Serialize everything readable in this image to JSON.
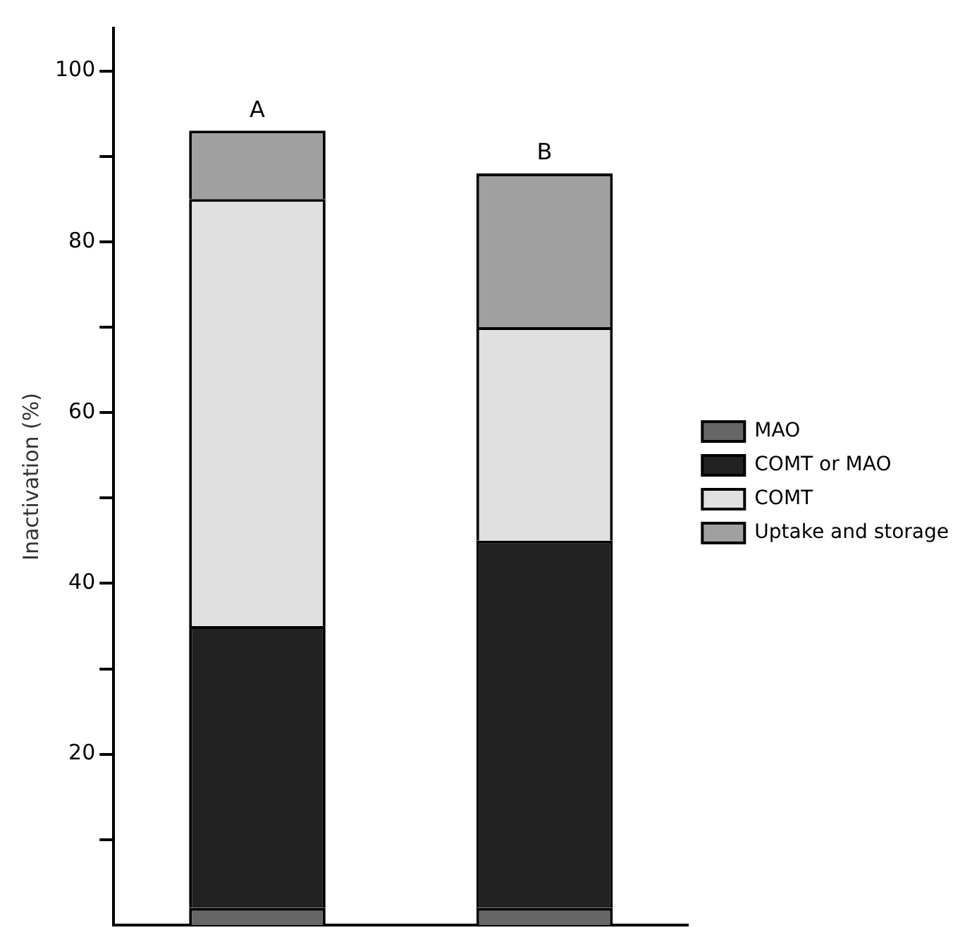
{
  "chart_data": {
    "type": "bar",
    "stacked": true,
    "ylabel": "Inactivation (%)",
    "categories": [
      "A",
      "B"
    ],
    "series": [
      {
        "name": "MAO",
        "color": "#666666",
        "values": [
          2,
          2
        ]
      },
      {
        "name": "COMT or MAO",
        "color": "#222222",
        "values": [
          33,
          43
        ]
      },
      {
        "name": "COMT",
        "color": "#e0e0e0",
        "values": [
          50,
          25
        ]
      },
      {
        "name": "Uptake and storage",
        "color": "#a0a0a0",
        "values": [
          8,
          18
        ]
      }
    ],
    "ylim": [
      0,
      105
    ],
    "yticks": [
      {
        "value": 10,
        "label": null
      },
      20,
      {
        "value": 30,
        "label": null
      },
      40,
      {
        "value": 50,
        "label": null
      },
      60,
      {
        "value": 70,
        "label": null
      },
      80,
      {
        "value": 90,
        "label": null
      },
      100
    ],
    "grid": false,
    "legend": "right"
  }
}
